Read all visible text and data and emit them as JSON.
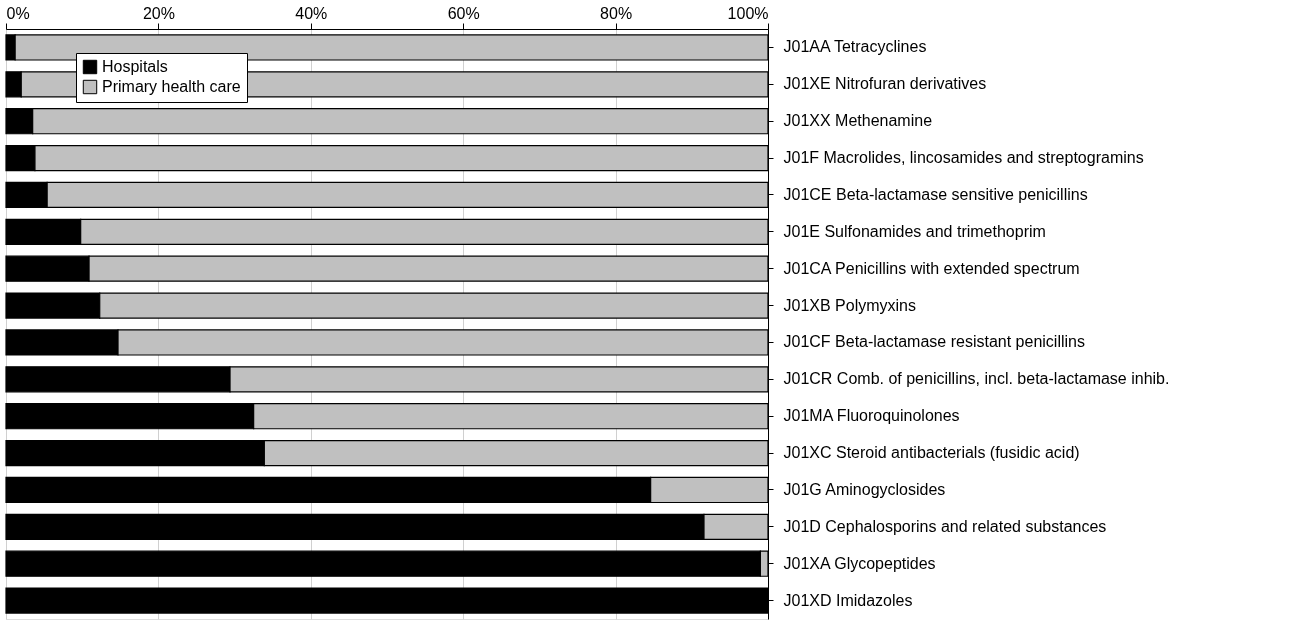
{
  "chart_data": {
    "type": "bar",
    "orientation": "horizontal",
    "stacked": true,
    "categories": [
      "J01AA Tetracyclines",
      "J01XE Nitrofuran derivatives",
      "J01XX Methenamine",
      "J01F  Macrolides, lincosamides and streptogramins",
      "J01CE Beta-lactamase sensitive penicillins",
      "J01E  Sulfonamides and trimethoprim",
      "J01CA Penicillins with extended spectrum",
      "J01XB Polymyxins",
      "J01CF Beta-lactamase resistant penicillins",
      "J01CR Comb. of penicillins, incl. beta-lactamase inhib.",
      "J01MA Fluoroquinolones",
      "J01XC Steroid antibacterials (fusidic acid)",
      "J01G  Aminogyclosides",
      "J01D  Cephalosporins and related substances",
      "J01XA Glycopeptides",
      "J01XD Imidazoles"
    ],
    "series": [
      {
        "name": "Hospitals",
        "color": "#000000",
        "values": [
          1.2,
          2.0,
          3.5,
          3.8,
          5.4,
          9.8,
          10.9,
          12.3,
          14.7,
          29.4,
          32.5,
          33.9,
          84.6,
          91.6,
          99.0,
          100
        ]
      },
      {
        "name": "Primary health care",
        "color": "#c0c0c0",
        "values": [
          98.8,
          98.0,
          96.5,
          96.2,
          94.6,
          90.2,
          89.1,
          87.7,
          85.3,
          70.6,
          67.5,
          66.1,
          15.4,
          8.4,
          1.0,
          null
        ]
      }
    ],
    "xlim": [
      0,
      100
    ],
    "xticks": [
      {
        "value": 0,
        "label": "0%"
      },
      {
        "value": 20,
        "label": "20%"
      },
      {
        "value": 40,
        "label": "40%"
      },
      {
        "value": 60,
        "label": "60%"
      },
      {
        "value": 80,
        "label": "80%"
      },
      {
        "value": 100,
        "label": "100%"
      }
    ],
    "grid": "x",
    "legend": "top left"
  }
}
